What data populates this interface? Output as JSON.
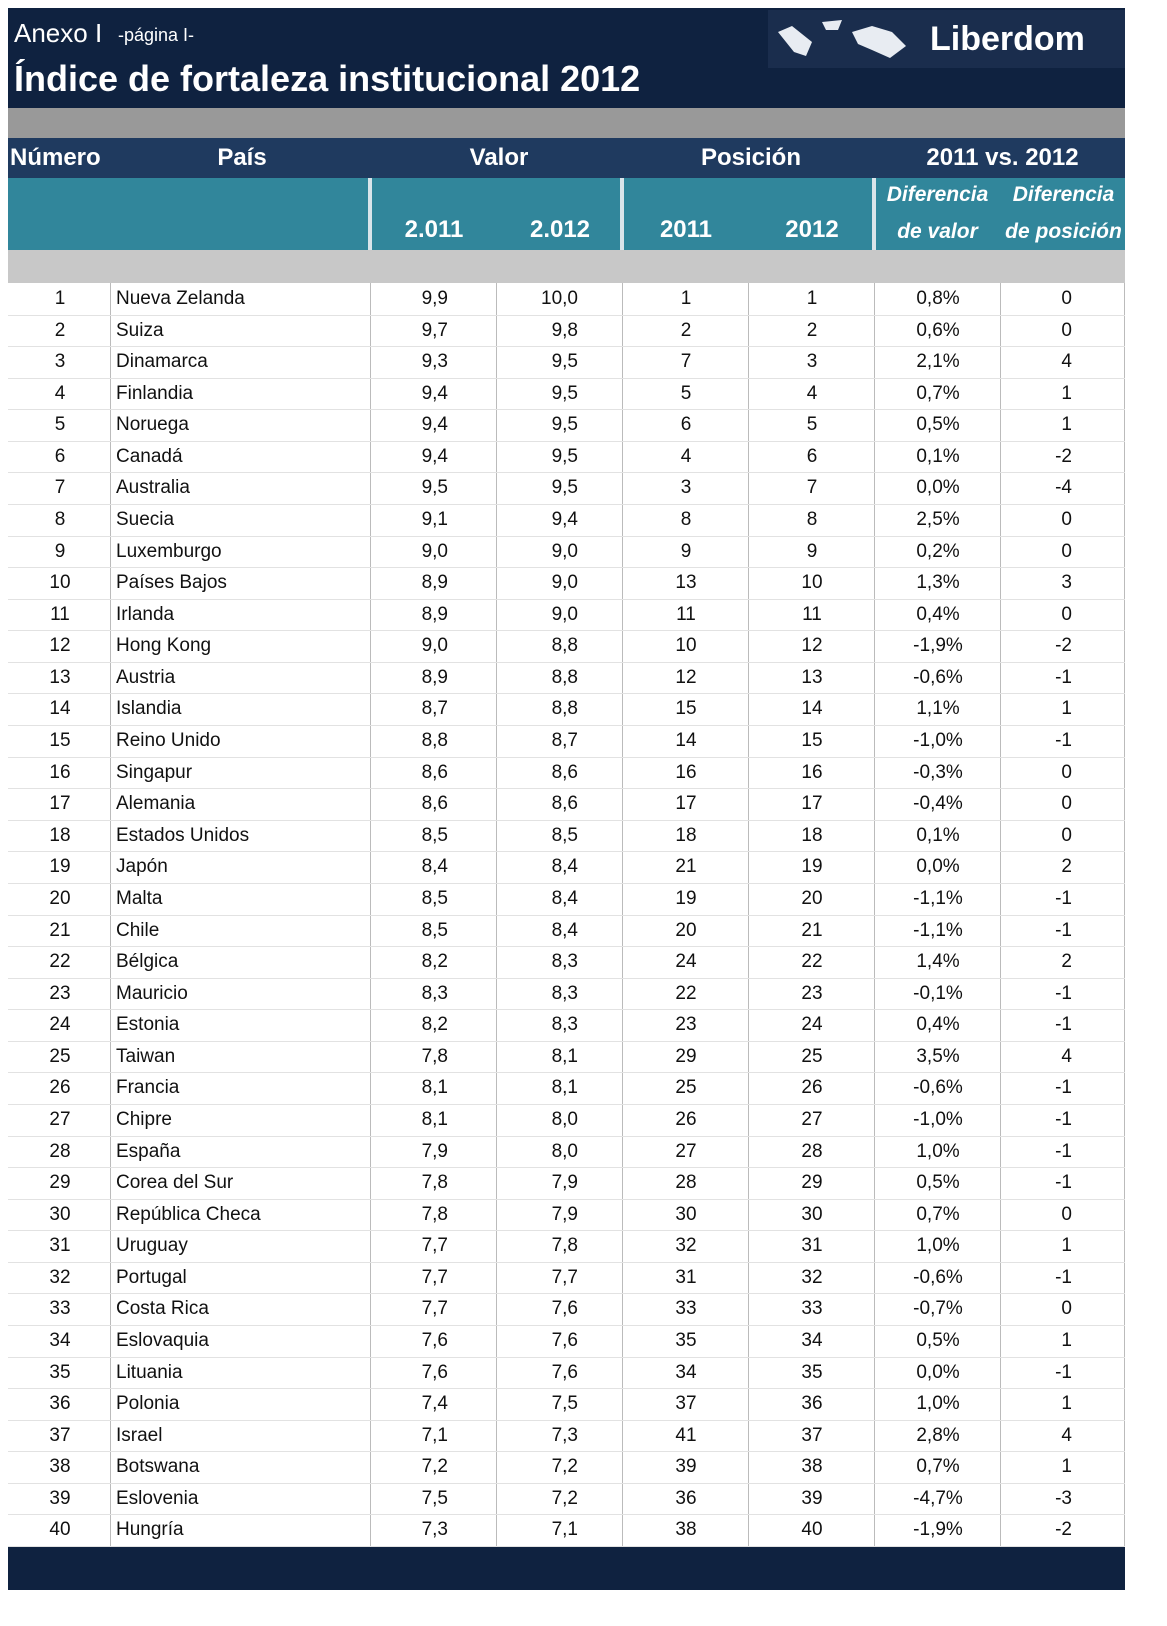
{
  "header": {
    "annex": "Anexo I",
    "page": "-página I-",
    "title": "Índice de fortaleza institucional 2012",
    "logo": "Liberdom"
  },
  "table": {
    "group_headers": [
      "Número",
      "País",
      "Valor",
      "Posición",
      "2011 vs. 2012"
    ],
    "sub_headers": [
      "2.011",
      "2.012",
      "2011",
      "2012"
    ],
    "diff_headers": [
      [
        "Diferencia",
        "de valor"
      ],
      [
        "Diferencia",
        "de posición"
      ]
    ],
    "rows": [
      [
        "1",
        "Nueva Zelanda",
        "9,9",
        "10,0",
        "1",
        "1",
        "0,8%",
        "0"
      ],
      [
        "2",
        "Suiza",
        "9,7",
        "9,8",
        "2",
        "2",
        "0,6%",
        "0"
      ],
      [
        "3",
        "Dinamarca",
        "9,3",
        "9,5",
        "7",
        "3",
        "2,1%",
        "4"
      ],
      [
        "4",
        "Finlandia",
        "9,4",
        "9,5",
        "5",
        "4",
        "0,7%",
        "1"
      ],
      [
        "5",
        "Noruega",
        "9,4",
        "9,5",
        "6",
        "5",
        "0,5%",
        "1"
      ],
      [
        "6",
        "Canadá",
        "9,4",
        "9,5",
        "4",
        "6",
        "0,1%",
        "-2"
      ],
      [
        "7",
        "Australia",
        "9,5",
        "9,5",
        "3",
        "7",
        "0,0%",
        "-4"
      ],
      [
        "8",
        "Suecia",
        "9,1",
        "9,4",
        "8",
        "8",
        "2,5%",
        "0"
      ],
      [
        "9",
        "Luxemburgo",
        "9,0",
        "9,0",
        "9",
        "9",
        "0,2%",
        "0"
      ],
      [
        "10",
        "Países Bajos",
        "8,9",
        "9,0",
        "13",
        "10",
        "1,3%",
        "3"
      ],
      [
        "11",
        "Irlanda",
        "8,9",
        "9,0",
        "11",
        "11",
        "0,4%",
        "0"
      ],
      [
        "12",
        "Hong Kong",
        "9,0",
        "8,8",
        "10",
        "12",
        "-1,9%",
        "-2"
      ],
      [
        "13",
        "Austria",
        "8,9",
        "8,8",
        "12",
        "13",
        "-0,6%",
        "-1"
      ],
      [
        "14",
        "Islandia",
        "8,7",
        "8,8",
        "15",
        "14",
        "1,1%",
        "1"
      ],
      [
        "15",
        "Reino Unido",
        "8,8",
        "8,7",
        "14",
        "15",
        "-1,0%",
        "-1"
      ],
      [
        "16",
        "Singapur",
        "8,6",
        "8,6",
        "16",
        "16",
        "-0,3%",
        "0"
      ],
      [
        "17",
        "Alemania",
        "8,6",
        "8,6",
        "17",
        "17",
        "-0,4%",
        "0"
      ],
      [
        "18",
        "Estados Unidos",
        "8,5",
        "8,5",
        "18",
        "18",
        "0,1%",
        "0"
      ],
      [
        "19",
        "Japón",
        "8,4",
        "8,4",
        "21",
        "19",
        "0,0%",
        "2"
      ],
      [
        "20",
        "Malta",
        "8,5",
        "8,4",
        "19",
        "20",
        "-1,1%",
        "-1"
      ],
      [
        "21",
        "Chile",
        "8,5",
        "8,4",
        "20",
        "21",
        "-1,1%",
        "-1"
      ],
      [
        "22",
        "Bélgica",
        "8,2",
        "8,3",
        "24",
        "22",
        "1,4%",
        "2"
      ],
      [
        "23",
        "Mauricio",
        "8,3",
        "8,3",
        "22",
        "23",
        "-0,1%",
        "-1"
      ],
      [
        "24",
        "Estonia",
        "8,2",
        "8,3",
        "23",
        "24",
        "0,4%",
        "-1"
      ],
      [
        "25",
        "Taiwan",
        "7,8",
        "8,1",
        "29",
        "25",
        "3,5%",
        "4"
      ],
      [
        "26",
        "Francia",
        "8,1",
        "8,1",
        "25",
        "26",
        "-0,6%",
        "-1"
      ],
      [
        "27",
        "Chipre",
        "8,1",
        "8,0",
        "26",
        "27",
        "-1,0%",
        "-1"
      ],
      [
        "28",
        "España",
        "7,9",
        "8,0",
        "27",
        "28",
        "1,0%",
        "-1"
      ],
      [
        "29",
        "Corea del Sur",
        "7,8",
        "7,9",
        "28",
        "29",
        "0,5%",
        "-1"
      ],
      [
        "30",
        "República Checa",
        "7,8",
        "7,9",
        "30",
        "30",
        "0,7%",
        "0"
      ],
      [
        "31",
        "Uruguay",
        "7,7",
        "7,8",
        "32",
        "31",
        "1,0%",
        "1"
      ],
      [
        "32",
        "Portugal",
        "7,7",
        "7,7",
        "31",
        "32",
        "-0,6%",
        "-1"
      ],
      [
        "33",
        "Costa Rica",
        "7,7",
        "7,6",
        "33",
        "33",
        "-0,7%",
        "0"
      ],
      [
        "34",
        "Eslovaquia",
        "7,6",
        "7,6",
        "35",
        "34",
        "0,5%",
        "1"
      ],
      [
        "35",
        "Lituania",
        "7,6",
        "7,6",
        "34",
        "35",
        "0,0%",
        "-1"
      ],
      [
        "36",
        "Polonia",
        "7,4",
        "7,5",
        "37",
        "36",
        "1,0%",
        "1"
      ],
      [
        "37",
        "Israel",
        "7,1",
        "7,3",
        "41",
        "37",
        "2,8%",
        "4"
      ],
      [
        "38",
        "Botswana",
        "7,2",
        "7,2",
        "39",
        "38",
        "0,7%",
        "1"
      ],
      [
        "39",
        "Eslovenia",
        "7,5",
        "7,2",
        "36",
        "39",
        "-4,7%",
        "-3"
      ],
      [
        "40",
        "Hungría",
        "7,3",
        "7,1",
        "38",
        "40",
        "-1,9%",
        "-2"
      ]
    ]
  }
}
